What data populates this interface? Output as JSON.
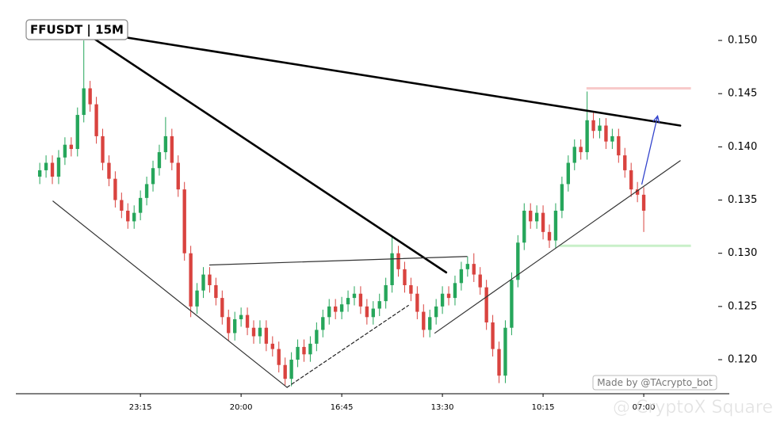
{
  "chart_data": {
    "type": "candlestick",
    "title": "FFUSDT | 15M",
    "credit": "Made by @TAcrypto_bot",
    "watermark": "@ CryptoX Square",
    "up_color": "#26a65b",
    "down_color": "#d9433f",
    "xlim": [
      -3.8,
      109.6
    ],
    "ylim": [
      0.1168,
      0.1538
    ],
    "xticks": [
      {
        "value": 16,
        "label": "23:15"
      },
      {
        "value": 32,
        "label": "20:00"
      },
      {
        "value": 48,
        "label": "16:45"
      },
      {
        "value": 64,
        "label": "13:30"
      },
      {
        "value": 80,
        "label": "10:15"
      },
      {
        "value": 96,
        "label": "07:00"
      }
    ],
    "yticks": [
      {
        "value": 0.12,
        "label": "0.120"
      },
      0.125,
      {
        "value": 0.13,
        "label": "0.130"
      },
      0.135,
      {
        "value": 0.14,
        "label": "0.140"
      },
      0.145,
      {
        "value": 0.15,
        "label": "0.150"
      }
    ],
    "open": [
      0.1372,
      0.1378,
      0.1385,
      0.1372,
      0.139,
      0.1402,
      0.1398,
      0.143,
      0.1455,
      0.144,
      0.141,
      0.1385,
      0.137,
      0.135,
      0.134,
      0.133,
      0.1338,
      0.1352,
      0.1365,
      0.138,
      0.1395,
      0.141,
      0.1385,
      0.136,
      0.13,
      0.125,
      0.1265,
      0.128,
      0.127,
      0.1258,
      0.124,
      0.1225,
      0.1238,
      0.1242,
      0.123,
      0.1222,
      0.123,
      0.1215,
      0.121,
      0.1195,
      0.1182,
      0.12,
      0.1212,
      0.1205,
      0.1215,
      0.1228,
      0.124,
      0.125,
      0.1245,
      0.1252,
      0.1258,
      0.1262,
      0.125,
      0.124,
      0.1248,
      0.1255,
      0.127,
      0.13,
      0.1285,
      0.127,
      0.1262,
      0.1245,
      0.1228,
      0.124,
      0.125,
      0.1262,
      0.1258,
      0.1272,
      0.1285,
      0.129,
      0.128,
      0.1268,
      0.1235,
      0.121,
      0.1185,
      0.123,
      0.1275,
      0.131,
      0.134,
      0.133,
      0.1338,
      0.132,
      0.1312,
      0.134,
      0.1365,
      0.1385,
      0.14,
      0.1395,
      0.1425,
      0.1415,
      0.142,
      0.1405,
      0.141,
      0.1392,
      0.1378,
      0.136,
      0.1355
    ],
    "high": [
      0.1385,
      0.1392,
      0.1392,
      0.1397,
      0.1409,
      0.1409,
      0.1437,
      0.15,
      0.1462,
      0.1447,
      0.1417,
      0.1392,
      0.1377,
      0.1357,
      0.1347,
      0.1345,
      0.1359,
      0.1372,
      0.1387,
      0.1402,
      0.1428,
      0.1417,
      0.1392,
      0.1367,
      0.1307,
      0.1272,
      0.1287,
      0.1287,
      0.1277,
      0.1265,
      0.1247,
      0.1245,
      0.1249,
      0.1249,
      0.1237,
      0.1237,
      0.1237,
      0.1222,
      0.1217,
      0.1202,
      0.1207,
      0.1219,
      0.1219,
      0.1222,
      0.1235,
      0.1247,
      0.1257,
      0.1257,
      0.1259,
      0.1265,
      0.1269,
      0.1269,
      0.1257,
      0.1255,
      0.1262,
      0.1277,
      0.1315,
      0.1307,
      0.1292,
      0.1277,
      0.1269,
      0.1252,
      0.1247,
      0.1257,
      0.1269,
      0.1269,
      0.1279,
      0.1292,
      0.1297,
      0.13,
      0.1287,
      0.1275,
      0.1242,
      0.1217,
      0.1237,
      0.1282,
      0.1317,
      0.1347,
      0.1347,
      0.1345,
      0.1345,
      0.1327,
      0.1347,
      0.1372,
      0.1392,
      0.1407,
      0.1407,
      0.1452,
      0.1432,
      0.1427,
      0.1427,
      0.1417,
      0.1417,
      0.1399,
      0.1385,
      0.1367,
      0.1362
    ],
    "low": [
      0.1365,
      0.1371,
      0.1365,
      0.1365,
      0.1383,
      0.1391,
      0.1391,
      0.1423,
      0.1433,
      0.1403,
      0.1378,
      0.1363,
      0.1343,
      0.1333,
      0.1323,
      0.1323,
      0.1331,
      0.1345,
      0.1358,
      0.1373,
      0.1388,
      0.1378,
      0.1353,
      0.1293,
      0.124,
      0.1243,
      0.1258,
      0.1263,
      0.1251,
      0.1233,
      0.1218,
      0.1218,
      0.1231,
      0.1223,
      0.1215,
      0.1215,
      0.1208,
      0.1203,
      0.1188,
      0.1176,
      0.1175,
      0.1193,
      0.1198,
      0.1198,
      0.1208,
      0.1221,
      0.1233,
      0.1238,
      0.1238,
      0.1245,
      0.1251,
      0.1243,
      0.1233,
      0.1233,
      0.1241,
      0.1248,
      0.1263,
      0.1278,
      0.1263,
      0.1255,
      0.1238,
      0.1221,
      0.1221,
      0.1233,
      0.1243,
      0.1251,
      0.1251,
      0.1265,
      0.1278,
      0.1273,
      0.1261,
      0.1228,
      0.1203,
      0.1178,
      0.1178,
      0.1223,
      0.1268,
      0.1303,
      0.1323,
      0.1323,
      0.1313,
      0.1305,
      0.1305,
      0.1333,
      0.1358,
      0.1378,
      0.1388,
      0.1388,
      0.1408,
      0.1408,
      0.1398,
      0.1398,
      0.1385,
      0.1371,
      0.1353,
      0.1348,
      0.132
    ],
    "close": [
      0.1378,
      0.1385,
      0.1372,
      0.139,
      0.1402,
      0.1398,
      0.143,
      0.1455,
      0.144,
      0.141,
      0.1385,
      0.137,
      0.135,
      0.134,
      0.133,
      0.1338,
      0.1352,
      0.1365,
      0.138,
      0.1395,
      0.141,
      0.1385,
      0.136,
      0.13,
      0.125,
      0.1265,
      0.128,
      0.127,
      0.1258,
      0.124,
      0.1225,
      0.1238,
      0.1242,
      0.123,
      0.1222,
      0.123,
      0.1215,
      0.121,
      0.1195,
      0.1182,
      0.12,
      0.1212,
      0.1205,
      0.1215,
      0.1228,
      0.124,
      0.125,
      0.1245,
      0.1252,
      0.1258,
      0.1262,
      0.125,
      0.124,
      0.1248,
      0.1255,
      0.127,
      0.13,
      0.1285,
      0.127,
      0.1262,
      0.1245,
      0.1228,
      0.124,
      0.125,
      0.1262,
      0.1258,
      0.1272,
      0.1285,
      0.129,
      0.128,
      0.1268,
      0.1235,
      0.121,
      0.1185,
      0.123,
      0.1275,
      0.131,
      0.134,
      0.133,
      0.1338,
      0.132,
      0.1312,
      0.134,
      0.1365,
      0.1385,
      0.14,
      0.1395,
      0.1425,
      0.1415,
      0.142,
      0.1405,
      0.141,
      0.1392,
      0.1378,
      0.136,
      0.1355,
      0.134
    ],
    "trendlines": [
      {
        "x": [
          8.2,
          101.8
        ],
        "y": [
          0.1508,
          0.142
        ],
        "style": "thick",
        "color": "#000000"
      },
      {
        "x": [
          8.8,
          64.6
        ],
        "y": [
          0.1501,
          0.1282
        ],
        "style": "thick",
        "color": "#000000"
      },
      {
        "x": [
          2.1,
          39.3
        ],
        "y": [
          0.1349,
          0.1174
        ],
        "style": "thin",
        "color": "#333333"
      },
      {
        "x": [
          27,
          67.9
        ],
        "y": [
          0.1289,
          0.1297
        ],
        "style": "thin",
        "color": "#333333"
      },
      {
        "x": [
          39.3,
          58.6
        ],
        "y": [
          0.1174,
          0.1251
        ],
        "style": "dashed",
        "color": "#222222"
      },
      {
        "x": [
          62.8,
          101.8
        ],
        "y": [
          0.1225,
          0.1387
        ],
        "style": "thin",
        "color": "#333333"
      },
      {
        "x": [
          95.7,
          98.2
        ],
        "y": [
          0.1365,
          0.1429
        ],
        "style": "arrow",
        "color": "#3344cc"
      }
    ],
    "levels": [
      {
        "y": 0.1455,
        "x": [
          86.9,
          103.5
        ],
        "color": "#f8caca"
      },
      {
        "y": 0.1307,
        "x": [
          82.6,
          103.5
        ],
        "color": "#c8f0c8"
      }
    ]
  }
}
